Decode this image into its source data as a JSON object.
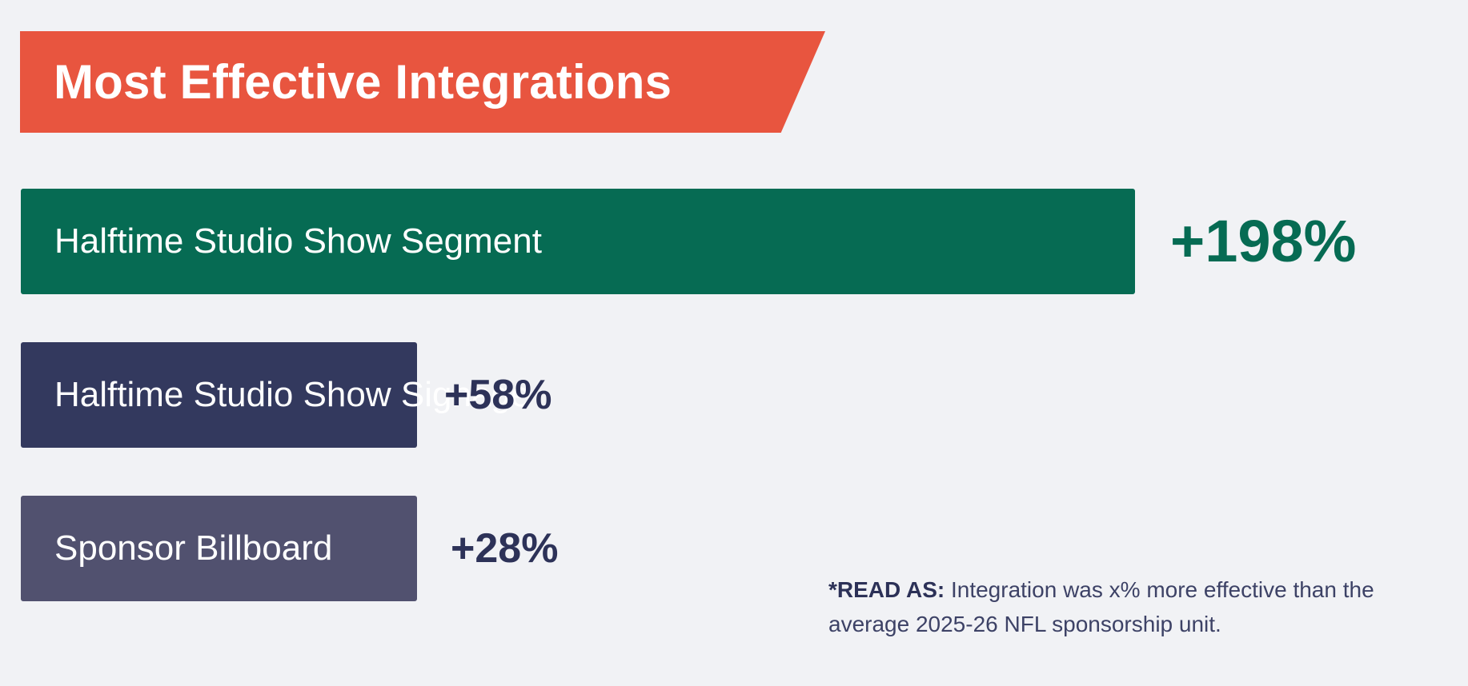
{
  "title": "Most Effective Integrations",
  "chart_data": {
    "type": "bar",
    "orientation": "horizontal",
    "categories": [
      "Halftime Studio Show Segment",
      "Halftime Studio Show Signage",
      "Sponsor Billboard"
    ],
    "values": [
      198,
      58,
      28
    ],
    "value_labels": [
      "+198%",
      "+58%",
      "+28%"
    ],
    "title": "Most Effective Integrations",
    "xlabel": "",
    "ylabel": "",
    "grid": false,
    "legend": "none",
    "colors": [
      "#066b53",
      "#33395e",
      "#51516f"
    ],
    "value_label_colors": [
      "#066b53",
      "#2d3258",
      "#2d3258"
    ]
  },
  "footnote": {
    "lead": "*READ AS:",
    "text": " Integration was x% more effective than the average 2025-26 NFL sponsorship unit."
  },
  "colors": {
    "background": "#f1f2f5",
    "banner": "#e8553f",
    "footnote_text": "#3d4266"
  }
}
